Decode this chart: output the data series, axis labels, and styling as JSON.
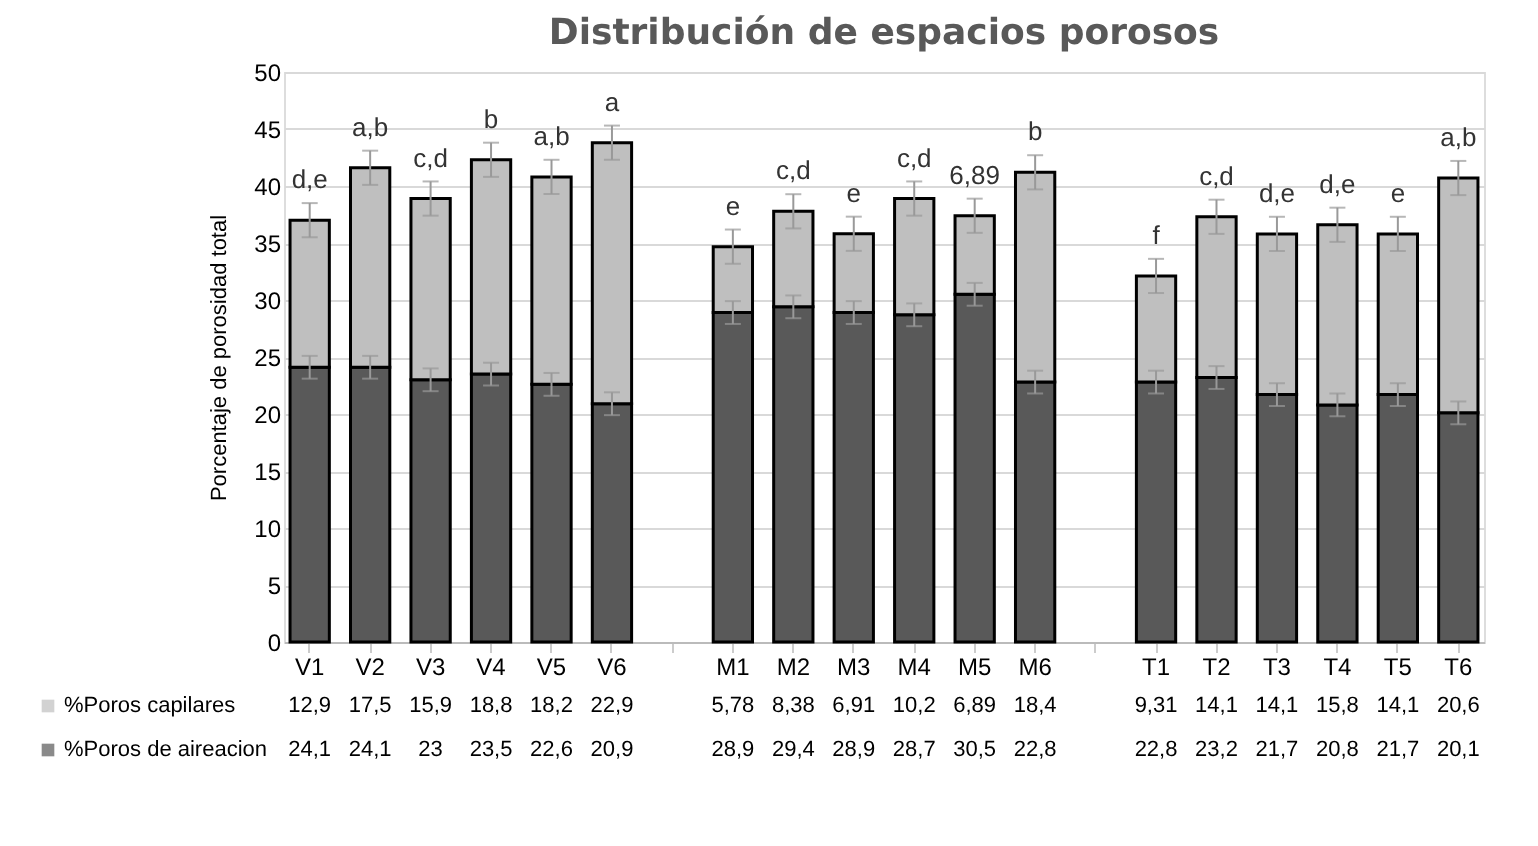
{
  "chart_data": {
    "type": "bar",
    "title": "Distribución  de espacios porosos",
    "ylabel": "Porcentaje de porosidad total",
    "categories": [
      "V1",
      "V2",
      "V3",
      "V4",
      "V5",
      "V6",
      null,
      "M1",
      "M2",
      "M3",
      "M4",
      "M5",
      "M6",
      null,
      "T1",
      "T2",
      "T3",
      "T4",
      "T5",
      "T6"
    ],
    "stacked": true,
    "ylim": [
      0,
      50
    ],
    "yticks": [
      0,
      5,
      10,
      15,
      20,
      25,
      30,
      35,
      40,
      45,
      50
    ],
    "grid": "y",
    "legend": "bottom",
    "series": [
      {
        "name": "%Poros de aireacion",
        "color": "#595959",
        "values": [
          24.1,
          24.1,
          23,
          23.5,
          22.6,
          20.9,
          null,
          28.9,
          29.4,
          28.9,
          28.7,
          30.5,
          22.8,
          null,
          22.8,
          23.2,
          21.7,
          20.8,
          21.7,
          20.1
        ],
        "errors": [
          1,
          1,
          1,
          1,
          1,
          1,
          null,
          1,
          1,
          1,
          1,
          1,
          1,
          null,
          1,
          1,
          1,
          1,
          1,
          1
        ],
        "value_labels": [
          "24,1",
          "24,1",
          "23",
          "23,5",
          "22,6",
          "20,9",
          null,
          "28,9",
          "29,4",
          "28,9",
          "28,7",
          "30,5",
          "22,8",
          null,
          "22,8",
          "23,2",
          "21,7",
          "20,8",
          "21,7",
          "20,1"
        ]
      },
      {
        "name": "%Poros capilares",
        "color": "#bfbfbf",
        "values": [
          12.9,
          17.5,
          15.9,
          18.8,
          18.2,
          22.9,
          null,
          5.78,
          8.38,
          6.91,
          10.2,
          6.89,
          18.4,
          null,
          9.31,
          14.1,
          14.1,
          15.8,
          14.1,
          20.6
        ],
        "errors": [
          1.5,
          1.5,
          1.5,
          1.5,
          1.5,
          1.5,
          null,
          1.5,
          1.5,
          1.5,
          1.5,
          1.5,
          1.5,
          null,
          1.5,
          1.5,
          1.5,
          1.5,
          1.5,
          1.5
        ],
        "value_labels": [
          "12,9",
          "17,5",
          "15,9",
          "18,8",
          "18,2",
          "22,9",
          null,
          "5,78",
          "8,38",
          "6,91",
          "10,2",
          "6,89",
          "18,4",
          null,
          "9,31",
          "14,1",
          "14,1",
          "15,8",
          "14,1",
          "20,6"
        ]
      }
    ],
    "annotations": [
      {
        "text": "d,e",
        "x": "V1",
        "y": 37.0
      },
      {
        "text": "a,b",
        "x": "V2",
        "y": 41.6
      },
      {
        "text": "c,d",
        "x": "V3",
        "y": 38.9
      },
      {
        "text": "b",
        "x": "V4",
        "y": 42.3
      },
      {
        "text": "a,b",
        "x": "V5",
        "y": 40.8
      },
      {
        "text": "a",
        "x": "V6",
        "y": 43.8
      },
      {
        "text": "e",
        "x": "M1",
        "y": 34.68
      },
      {
        "text": "c,d",
        "x": "M2",
        "y": 37.78
      },
      {
        "text": "e",
        "x": "M3",
        "y": 35.81
      },
      {
        "text": "c,d",
        "x": "M4",
        "y": 38.9
      },
      {
        "text": "6,89",
        "x": "M5",
        "y": 37.39
      },
      {
        "text": "b",
        "x": "M6",
        "y": 41.2
      },
      {
        "text": "f",
        "x": "T1",
        "y": 32.11
      },
      {
        "text": "c,d",
        "x": "T2",
        "y": 37.3
      },
      {
        "text": "d,e",
        "x": "T3",
        "y": 35.8
      },
      {
        "text": "d,e",
        "x": "T4",
        "y": 36.6
      },
      {
        "text": "e",
        "x": "T5",
        "y": 35.8
      },
      {
        "text": "a,b",
        "x": "T6",
        "y": 40.7
      }
    ]
  }
}
